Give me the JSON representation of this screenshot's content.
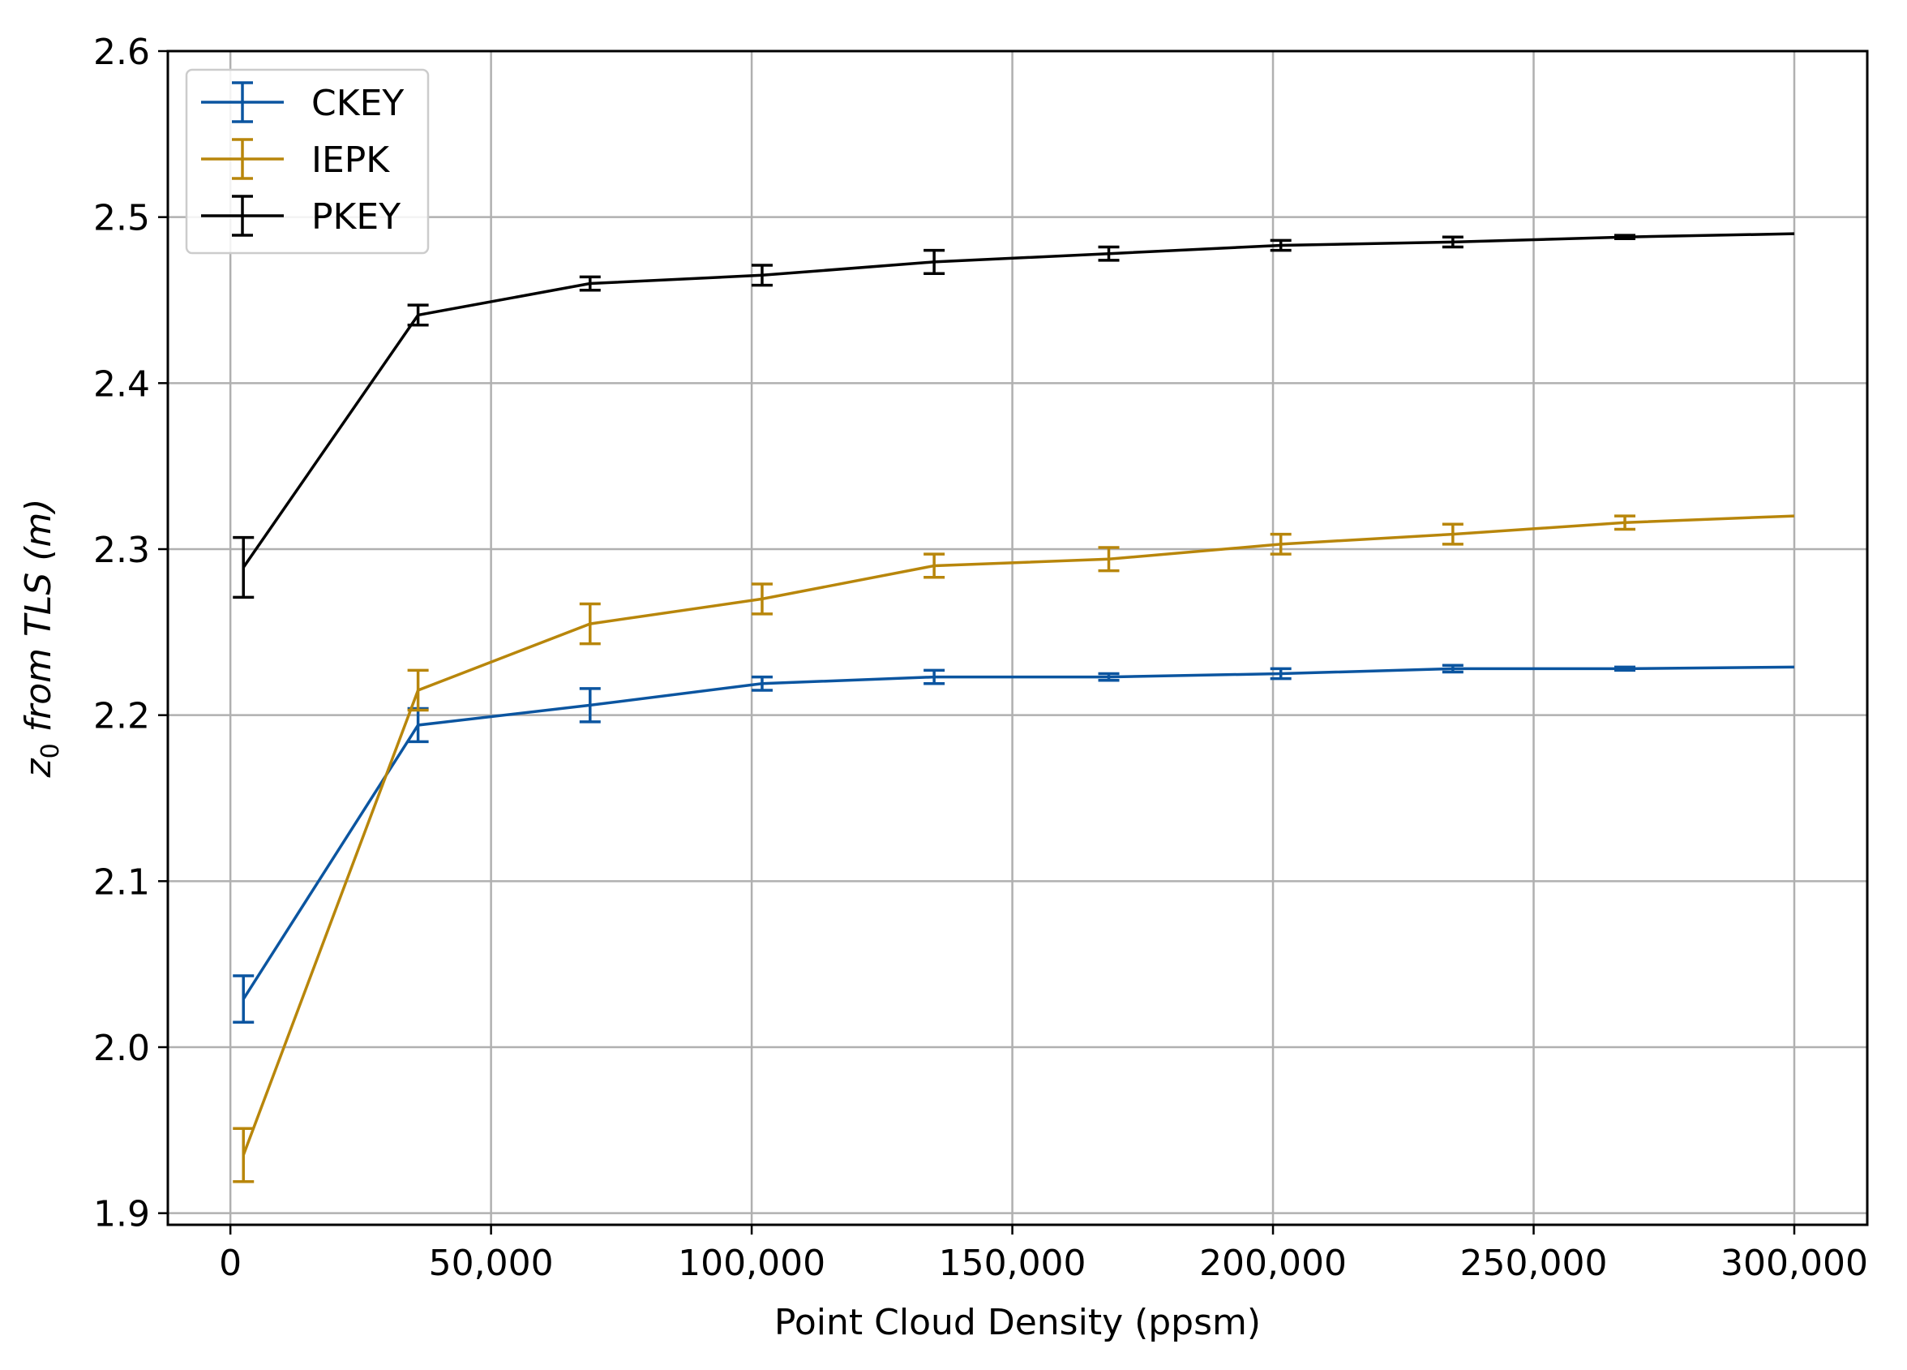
{
  "chart_data": {
    "type": "line",
    "xlabel": "Point Cloud Density (ppsm)",
    "ylabel": {
      "prefix": "z",
      "subscript": "0",
      "rest": " from TLS (m)"
    },
    "xlim": [
      -12000,
      314000
    ],
    "ylim": [
      1.893,
      2.6
    ],
    "xticks": [
      0,
      50000,
      100000,
      150000,
      200000,
      250000,
      300000
    ],
    "xtick_labels": [
      "0",
      "50,000",
      "100,000",
      "150,000",
      "200,000",
      "250,000",
      "300,000"
    ],
    "yticks": [
      1.9,
      2.0,
      2.1,
      2.2,
      2.3,
      2.4,
      2.5,
      2.6
    ],
    "ytick_labels": [
      "1.9",
      "2.0",
      "2.1",
      "2.2",
      "2.3",
      "2.4",
      "2.5",
      "2.6"
    ],
    "grid": true,
    "legend_position": "top-left",
    "x": [
      2500,
      36000,
      69000,
      102000,
      135000,
      168500,
      201500,
      234500,
      267500,
      300000
    ],
    "series": [
      {
        "name": "CKEY",
        "color": "#0b55a0",
        "values": [
          2.029,
          2.194,
          2.206,
          2.219,
          2.223,
          2.223,
          2.225,
          2.228,
          2.228,
          2.229
        ],
        "errors": [
          0.014,
          0.01,
          0.01,
          0.004,
          0.004,
          0.002,
          0.003,
          0.002,
          0.001,
          0.0
        ]
      },
      {
        "name": "IEPK",
        "color": "#b8860b",
        "values": [
          1.935,
          2.215,
          2.255,
          2.27,
          2.29,
          2.294,
          2.303,
          2.309,
          2.316,
          2.32
        ],
        "errors": [
          0.016,
          0.012,
          0.012,
          0.009,
          0.007,
          0.007,
          0.006,
          0.006,
          0.004,
          0.0
        ]
      },
      {
        "name": "PKEY",
        "color": "#000000",
        "values": [
          2.289,
          2.441,
          2.46,
          2.465,
          2.473,
          2.478,
          2.483,
          2.485,
          2.488,
          2.49
        ],
        "errors": [
          0.018,
          0.006,
          0.004,
          0.006,
          0.007,
          0.004,
          0.003,
          0.003,
          0.001,
          0.0
        ]
      }
    ]
  }
}
